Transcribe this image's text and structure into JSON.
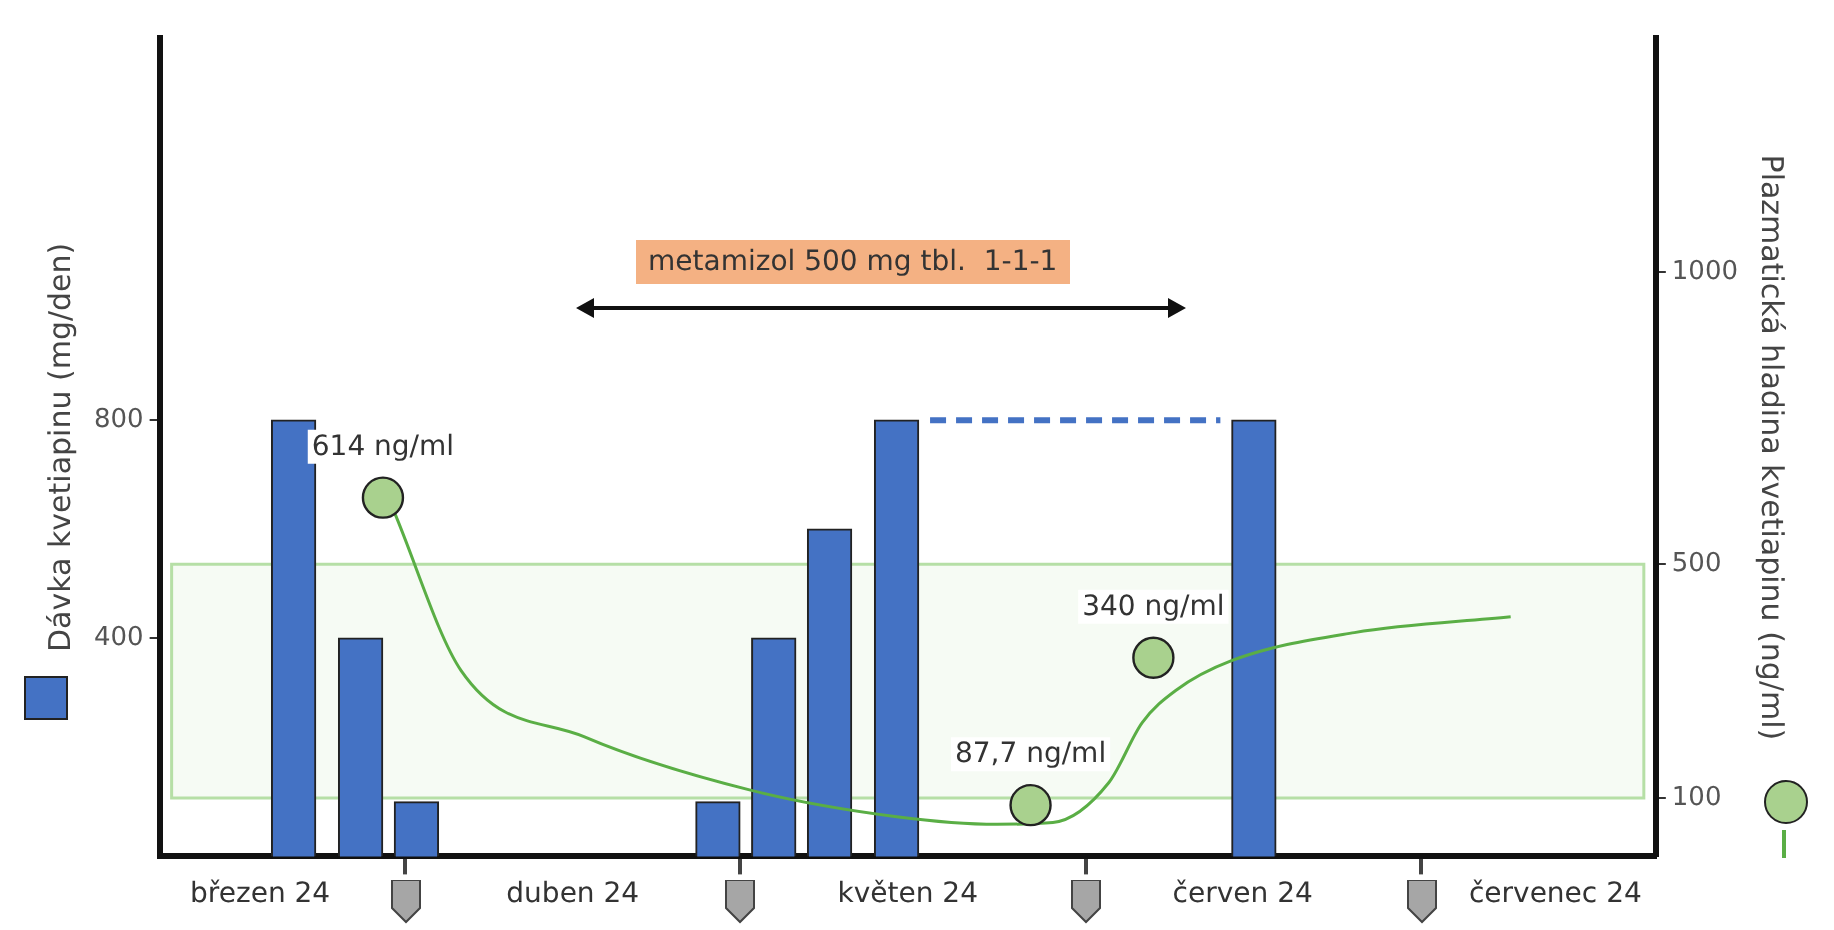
{
  "chart_data": {
    "type": "bar",
    "ylabel": "Dávka kvetiapinu (mg/den)",
    "y2label": "Plazmatická hladina kvetiapinu (ng/ml)",
    "annotations": [
      "metamizol 500 mg tbl.  1-1-1"
    ],
    "xlim": [
      "2024-03-10",
      "2024-07-22"
    ],
    "xticks": [
      {
        "value": "2024-03-19",
        "label": "březen 24"
      },
      {
        "value": "2024-04-01",
        "label": null
      },
      {
        "value": "2024-04-16",
        "label": "duben 24"
      },
      {
        "value": "2024-05-01",
        "label": null
      },
      {
        "value": "2024-05-16",
        "label": "květen 24"
      },
      {
        "value": "2024-06-01",
        "label": null
      },
      {
        "value": "2024-06-15",
        "label": "červen 24"
      },
      {
        "value": "2024-07-01",
        "label": null
      },
      {
        "value": "2024-07-13",
        "label": "červenec 24"
      }
    ],
    "ylim": [
      0,
      1500
    ],
    "yticks": [
      400,
      800
    ],
    "y2lim": [
      0,
      1400
    ],
    "y2ticks": [
      100,
      500,
      1000
    ],
    "bands": [
      {
        "axis": "y2",
        "from": 100,
        "to": 500,
        "color": "#b6dfa6"
      }
    ],
    "series": [
      {
        "color": "#4472c4",
        "x": [
          "2024-03-22",
          "2024-03-28",
          "2024-04-02",
          "2024-04-29",
          "2024-05-04",
          "2024-05-09",
          "2024-05-15",
          "2024-06-16"
        ],
        "values": [
          800,
          400,
          100,
          100,
          400,
          600,
          800,
          800
        ]
      },
      {
        "type": "line",
        "color": "#4472c4",
        "line_style": "dashed",
        "x": [
          "2024-05-18",
          "2024-06-13"
        ],
        "values": [
          800,
          800
        ]
      },
      {
        "type": "line",
        "axis": "y2",
        "color": "#5aae45",
        "x": [
          "2024-03-31",
          "2024-04-06",
          "2024-04-17",
          "2024-05-02",
          "2024-05-15",
          "2024-05-24",
          "2024-05-29",
          "2024-06-03",
          "2024-06-06",
          "2024-06-09",
          "2024-06-14",
          "2024-06-25",
          "2024-07-09"
        ],
        "values": [
          590,
          318,
          205,
          113,
          68,
          55,
          58,
          126,
          229,
          284,
          335,
          383,
          410
        ]
      },
      {
        "type": "scatter",
        "axis": "y2",
        "color": "#a9d18e",
        "marker": "circle",
        "x": [
          "2024-03-30",
          "2024-05-27",
          "2024-06-07"
        ],
        "values": [
          614,
          87.7,
          340
        ],
        "value_labels": [
          "614 ng/ml",
          "87,7 ng/ml",
          "340 ng/ml"
        ]
      }
    ],
    "grid": false,
    "legend": false
  }
}
